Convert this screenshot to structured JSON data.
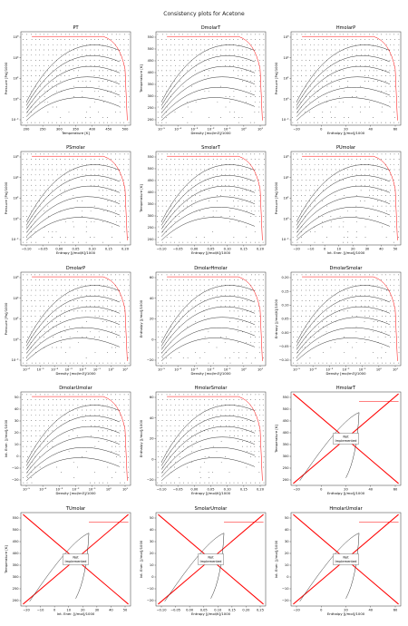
{
  "figure": {
    "title": "Consistency plots for Acetone"
  },
  "style": {
    "data_color": "#000000",
    "phase_envelope_color": "#ff0000"
  },
  "chart_data": [
    {
      "id": "PT",
      "type": "scatter",
      "title": "PT",
      "xlabel": "Temperature [K]",
      "ylabel": "Pressure [Pa]/1000",
      "xticks": [
        "200",
        "250",
        "300",
        "350",
        "400",
        "450",
        "500"
      ],
      "yticks": [
        "10⁻²",
        "10⁰",
        "10²",
        "10⁴",
        "10⁶"
      ],
      "xlim": [
        170,
        550
      ],
      "ylim": [
        -2.5,
        6.3
      ],
      "ylog": true,
      "implemented": true
    },
    {
      "id": "DmolarT",
      "type": "scatter",
      "title": "DmolarT",
      "xlabel": "Density [mol/m3]/1000",
      "ylabel": "Temperature [K]",
      "xticks": [
        "10⁻⁵",
        "10⁻⁴",
        "10⁻³",
        "10⁻²",
        "10⁻¹",
        "10⁰",
        "10¹"
      ],
      "yticks": [
        "200",
        "250",
        "300",
        "350",
        "400",
        "450",
        "500",
        "550"
      ],
      "xlim": [
        -5.5,
        1.3
      ],
      "ylim": [
        175,
        560
      ],
      "xlog": true,
      "implemented": true
    },
    {
      "id": "HmolarP",
      "type": "scatter",
      "title": "HmolarP",
      "xlabel": "Enthalpy [J/mol]/1000",
      "ylabel": "Pressure [Pa]/1000",
      "xticks": [
        "−20",
        "0",
        "20",
        "40",
        "60"
      ],
      "yticks": [
        "10⁻²",
        "10⁰",
        "10²",
        "10⁴",
        "10⁶"
      ],
      "xlim": [
        -22,
        72
      ],
      "ylim": [
        -2.5,
        6.3
      ],
      "ylog": true,
      "implemented": true
    },
    {
      "id": "PSmolar",
      "type": "scatter",
      "title": "PSmolar",
      "xlabel": "Entropy [J/mol/K]/1000",
      "ylabel": "Pressure [Pa]/1000",
      "xticks": [
        "−0.10",
        "−0.05",
        "0.00",
        "0.05",
        "0.10",
        "0.15",
        "0.20"
      ],
      "yticks": [
        "10⁻²",
        "10⁰",
        "10²",
        "10⁴",
        "10⁶"
      ],
      "xlim": [
        -0.12,
        0.24
      ],
      "ylim": [
        -2.5,
        6.3
      ],
      "ylog": true,
      "implemented": true
    },
    {
      "id": "SmolarT",
      "type": "scatter",
      "title": "SmolarT",
      "xlabel": "Entropy [J/mol/K]/1000",
      "ylabel": "Temperature [K]",
      "xticks": [
        "−0.10",
        "−0.05",
        "0.00",
        "0.05",
        "0.10",
        "0.15",
        "0.20"
      ],
      "yticks": [
        "200",
        "250",
        "300",
        "350",
        "400",
        "450",
        "500",
        "550"
      ],
      "xlim": [
        -0.12,
        0.24
      ],
      "ylim": [
        175,
        560
      ],
      "implemented": true
    },
    {
      "id": "PUmolar",
      "type": "scatter",
      "title": "PUmolar",
      "xlabel": "Int. Ener. [J/mol]/1000",
      "ylabel": "Pressure [Pa]/1000",
      "xticks": [
        "−20",
        "−10",
        "0",
        "10",
        "20",
        "30",
        "40",
        "50"
      ],
      "yticks": [
        "10⁻²",
        "10⁰",
        "10²",
        "10⁴",
        "10⁶"
      ],
      "xlim": [
        -22,
        52
      ],
      "ylim": [
        -2.5,
        6.3
      ],
      "ylog": true,
      "implemented": true
    },
    {
      "id": "DmolarP",
      "type": "scatter",
      "title": "DmolarP",
      "xlabel": "Density [mol/m3]/1000",
      "ylabel": "Pressure [Pa]/1000",
      "xticks": [
        "10⁻⁶",
        "10⁻⁵",
        "10⁻⁴",
        "10⁻³",
        "10⁻²",
        "10⁻¹",
        "10⁰",
        "10¹"
      ],
      "yticks": [
        "10⁻²",
        "10⁰",
        "10²",
        "10⁴",
        "10⁶"
      ],
      "xlim": [
        -6.5,
        1.3
      ],
      "ylim": [
        -2.5,
        6.3
      ],
      "xlog": true,
      "ylog": true,
      "implemented": true
    },
    {
      "id": "DmolarHmolar",
      "type": "scatter",
      "title": "DmolarHmolar",
      "xlabel": "Density [mol/m3]/1000",
      "ylabel": "Enthalpy [J/mol]/1000",
      "xticks": [
        "10⁻⁵",
        "10⁻⁴",
        "10⁻³",
        "10⁻²",
        "10⁻¹",
        "10⁰",
        "10¹"
      ],
      "yticks": [
        "−20",
        "0",
        "20",
        "40",
        "60"
      ],
      "xlim": [
        -5.5,
        1.3
      ],
      "ylim": [
        -22,
        72
      ],
      "xlog": true,
      "implemented": true
    },
    {
      "id": "DmolarSmolar",
      "type": "scatter",
      "title": "DmolarSmolar",
      "xlabel": "Density [mol/m3]/1000",
      "ylabel": "Entropy [J/mol/K]/1000",
      "xticks": [
        "10⁻⁵",
        "10⁻⁴",
        "10⁻³",
        "10⁻²",
        "10⁻¹",
        "10⁰",
        "10¹"
      ],
      "yticks": [
        "−0.10",
        "−0.05",
        "0.00",
        "0.05",
        "0.10",
        "0.15",
        "0.20"
      ],
      "xlim": [
        -5.5,
        1.3
      ],
      "ylim": [
        -0.12,
        0.24
      ],
      "xlog": true,
      "implemented": true
    },
    {
      "id": "DmolarUmolar",
      "type": "scatter",
      "title": "DmolarUmolar",
      "xlabel": "Density [mol/m3]/1000",
      "ylabel": "Int. Ener. [J/mol]/1000",
      "xticks": [
        "10⁻⁵",
        "10⁻⁴",
        "10⁻³",
        "10⁻²",
        "10⁻¹",
        "10⁰",
        "10¹"
      ],
      "yticks": [
        "−20",
        "−10",
        "0",
        "10",
        "20",
        "30",
        "40",
        "50"
      ],
      "xlim": [
        -5.5,
        1.3
      ],
      "ylim": [
        -22,
        52
      ],
      "xlog": true,
      "implemented": true
    },
    {
      "id": "HmolarSmolar",
      "type": "scatter",
      "title": "HmolarSmolar",
      "xlabel": "Entropy [J/mol/K]/1000",
      "ylabel": "Enthalpy [J/mol]/1000",
      "xticks": [
        "−0.10",
        "−0.05",
        "0.00",
        "0.05",
        "0.10",
        "0.15",
        "0.20"
      ],
      "yticks": [
        "−20",
        "0",
        "20",
        "40",
        "60"
      ],
      "xlim": [
        -0.12,
        0.24
      ],
      "ylim": [
        -22,
        72
      ],
      "implemented": true
    },
    {
      "id": "HmolarT",
      "type": "scatter",
      "title": "HmolarT",
      "xlabel": "Enthalpy [J/mol]/1000",
      "ylabel": "Temperature [K]",
      "xticks": [
        "−20",
        "0",
        "20",
        "40",
        "60"
      ],
      "yticks": [
        "200",
        "250",
        "300",
        "350",
        "400",
        "450",
        "500",
        "550"
      ],
      "xlim": [
        -22,
        72
      ],
      "ylim": [
        175,
        560
      ],
      "implemented": false,
      "note": "Not\nImplemented"
    },
    {
      "id": "TUmolar",
      "type": "scatter",
      "title": "TUmolar",
      "xlabel": "Int. Ener. [J/mol]/1000",
      "ylabel": "Temperature [K]",
      "xticks": [
        "−20",
        "−10",
        "0",
        "10",
        "20",
        "30",
        "40",
        "50"
      ],
      "yticks": [
        "200",
        "250",
        "300",
        "350",
        "400",
        "450",
        "500",
        "550"
      ],
      "xlim": [
        -22,
        52
      ],
      "ylim": [
        175,
        560
      ],
      "implemented": false,
      "note": "Not\nImplemented"
    },
    {
      "id": "SmolarUmolar",
      "type": "scatter",
      "title": "SmolarUmolar",
      "xlabel": "Entropy [J/mol/K]/1000",
      "ylabel": "Int. Ener. [J/mol]/1000",
      "xticks": [
        "−0.10",
        "−0.05",
        "0.00",
        "0.05",
        "0.10",
        "0.15",
        "0.20",
        "0.25"
      ],
      "yticks": [
        "−20",
        "−10",
        "0",
        "10",
        "20",
        "30",
        "40",
        "50"
      ],
      "xlim": [
        -0.12,
        0.26
      ],
      "ylim": [
        -22,
        52
      ],
      "implemented": false,
      "note": "Not\nImplemented"
    },
    {
      "id": "HmolarUmolar",
      "type": "scatter",
      "title": "HmolarUmolar",
      "xlabel": "Enthalpy [J/mol]/1000",
      "ylabel": "Int. Ener. [J/mol]/1000",
      "xticks": [
        "−20",
        "0",
        "20",
        "40",
        "60"
      ],
      "yticks": [
        "−20",
        "−10",
        "0",
        "10",
        "20",
        "30",
        "40",
        "50"
      ],
      "xlim": [
        -22,
        72
      ],
      "ylim": [
        -22,
        52
      ],
      "implemented": false,
      "note": "Not\nImplemented"
    }
  ]
}
